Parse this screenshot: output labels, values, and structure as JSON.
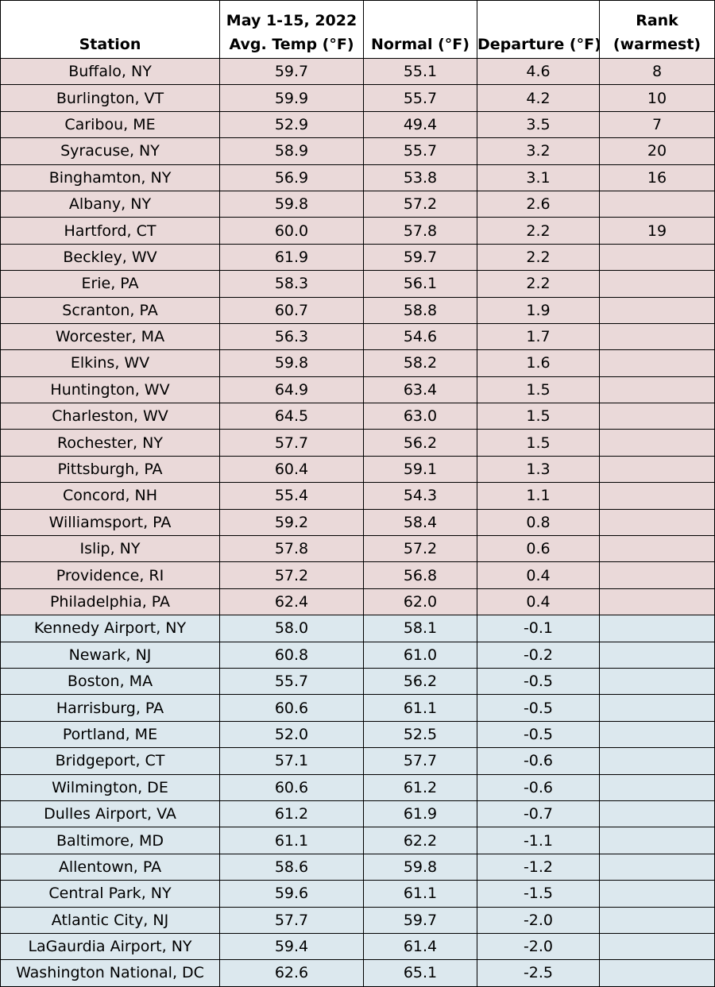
{
  "headers": {
    "station": "Station",
    "avg_line1": "May 1-15, 2022",
    "avg_line2": "Avg. Temp (°F)",
    "normal": "Normal (°F)",
    "departure": "Departure (°F)",
    "rank_line1": "Rank",
    "rank_line2": "(warmest)"
  },
  "colors": {
    "above_normal_row": "#ead9d9",
    "below_normal_row": "#dce8ee"
  },
  "rows": [
    {
      "station": "Buffalo, NY",
      "avg": "59.7",
      "normal": "55.1",
      "departure": "4.6",
      "rank": "8"
    },
    {
      "station": "Burlington, VT",
      "avg": "59.9",
      "normal": "55.7",
      "departure": "4.2",
      "rank": "10"
    },
    {
      "station": "Caribou, ME",
      "avg": "52.9",
      "normal": "49.4",
      "departure": "3.5",
      "rank": "7"
    },
    {
      "station": "Syracuse, NY",
      "avg": "58.9",
      "normal": "55.7",
      "departure": "3.2",
      "rank": "20"
    },
    {
      "station": "Binghamton, NY",
      "avg": "56.9",
      "normal": "53.8",
      "departure": "3.1",
      "rank": "16"
    },
    {
      "station": "Albany, NY",
      "avg": "59.8",
      "normal": "57.2",
      "departure": "2.6",
      "rank": ""
    },
    {
      "station": "Hartford, CT",
      "avg": "60.0",
      "normal": "57.8",
      "departure": "2.2",
      "rank": "19"
    },
    {
      "station": "Beckley, WV",
      "avg": "61.9",
      "normal": "59.7",
      "departure": "2.2",
      "rank": ""
    },
    {
      "station": "Erie, PA",
      "avg": "58.3",
      "normal": "56.1",
      "departure": "2.2",
      "rank": ""
    },
    {
      "station": "Scranton, PA",
      "avg": "60.7",
      "normal": "58.8",
      "departure": "1.9",
      "rank": ""
    },
    {
      "station": "Worcester, MA",
      "avg": "56.3",
      "normal": "54.6",
      "departure": "1.7",
      "rank": ""
    },
    {
      "station": "Elkins, WV",
      "avg": "59.8",
      "normal": "58.2",
      "departure": "1.6",
      "rank": ""
    },
    {
      "station": "Huntington, WV",
      "avg": "64.9",
      "normal": "63.4",
      "departure": "1.5",
      "rank": ""
    },
    {
      "station": "Charleston, WV",
      "avg": "64.5",
      "normal": "63.0",
      "departure": "1.5",
      "rank": ""
    },
    {
      "station": "Rochester, NY",
      "avg": "57.7",
      "normal": "56.2",
      "departure": "1.5",
      "rank": ""
    },
    {
      "station": "Pittsburgh, PA",
      "avg": "60.4",
      "normal": "59.1",
      "departure": "1.3",
      "rank": ""
    },
    {
      "station": "Concord, NH",
      "avg": "55.4",
      "normal": "54.3",
      "departure": "1.1",
      "rank": ""
    },
    {
      "station": "Williamsport, PA",
      "avg": "59.2",
      "normal": "58.4",
      "departure": "0.8",
      "rank": ""
    },
    {
      "station": "Islip, NY",
      "avg": "57.8",
      "normal": "57.2",
      "departure": "0.6",
      "rank": ""
    },
    {
      "station": "Providence, RI",
      "avg": "57.2",
      "normal": "56.8",
      "departure": "0.4",
      "rank": ""
    },
    {
      "station": "Philadelphia, PA",
      "avg": "62.4",
      "normal": "62.0",
      "departure": "0.4",
      "rank": ""
    },
    {
      "station": "Kennedy Airport, NY",
      "avg": "58.0",
      "normal": "58.1",
      "departure": "-0.1",
      "rank": ""
    },
    {
      "station": "Newark, NJ",
      "avg": "60.8",
      "normal": "61.0",
      "departure": "-0.2",
      "rank": ""
    },
    {
      "station": "Boston, MA",
      "avg": "55.7",
      "normal": "56.2",
      "departure": "-0.5",
      "rank": ""
    },
    {
      "station": "Harrisburg, PA",
      "avg": "60.6",
      "normal": "61.1",
      "departure": "-0.5",
      "rank": ""
    },
    {
      "station": "Portland, ME",
      "avg": "52.0",
      "normal": "52.5",
      "departure": "-0.5",
      "rank": ""
    },
    {
      "station": "Bridgeport, CT",
      "avg": "57.1",
      "normal": "57.7",
      "departure": "-0.6",
      "rank": ""
    },
    {
      "station": "Wilmington, DE",
      "avg": "60.6",
      "normal": "61.2",
      "departure": "-0.6",
      "rank": ""
    },
    {
      "station": "Dulles Airport, VA",
      "avg": "61.2",
      "normal": "61.9",
      "departure": "-0.7",
      "rank": ""
    },
    {
      "station": "Baltimore, MD",
      "avg": "61.1",
      "normal": "62.2",
      "departure": "-1.1",
      "rank": ""
    },
    {
      "station": "Allentown, PA",
      "avg": "58.6",
      "normal": "59.8",
      "departure": "-1.2",
      "rank": ""
    },
    {
      "station": "Central Park, NY",
      "avg": "59.6",
      "normal": "61.1",
      "departure": "-1.5",
      "rank": ""
    },
    {
      "station": "Atlantic City, NJ",
      "avg": "57.7",
      "normal": "59.7",
      "departure": "-2.0",
      "rank": ""
    },
    {
      "station": "LaGaurdia Airport, NY",
      "avg": "59.4",
      "normal": "61.4",
      "departure": "-2.0",
      "rank": ""
    },
    {
      "station": "Washington National, DC",
      "avg": "62.6",
      "normal": "65.1",
      "departure": "-2.5",
      "rank": ""
    }
  ]
}
